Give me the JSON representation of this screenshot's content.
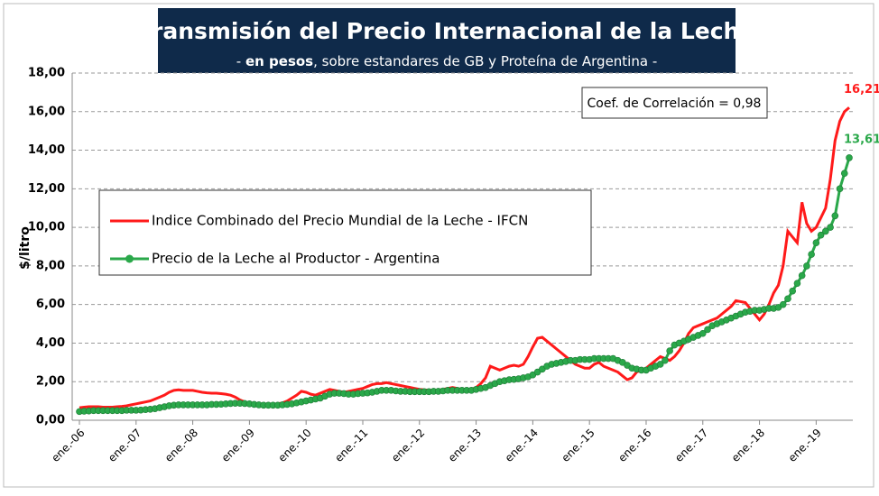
{
  "chart_data": {
    "type": "line",
    "title": "Transmisión del Precio Internacional de la Leche",
    "subtitle_parts": [
      "- ",
      "en pesos",
      ", sobre estandares de GB y Proteína de  Argentina -"
    ],
    "annotation": "Coef. de Correlación = 0,98",
    "y_label": "$/litro",
    "ylim": [
      0,
      18
    ],
    "yticks": [
      {
        "value": 0,
        "label": "0,00"
      },
      {
        "value": 2,
        "label": "2,00"
      },
      {
        "value": 4,
        "label": "4,00"
      },
      {
        "value": 6,
        "label": "6,00"
      },
      {
        "value": 8,
        "label": "8,00"
      },
      {
        "value": 10,
        "label": "10,00"
      },
      {
        "value": 12,
        "label": "12,00"
      },
      {
        "value": 14,
        "label": "14,00"
      },
      {
        "value": 16,
        "label": "16,00"
      },
      {
        "value": 18,
        "label": "18,00"
      }
    ],
    "grid": true,
    "legend": "left",
    "categories": [
      "ene.-06",
      null,
      null,
      null,
      null,
      null,
      null,
      null,
      null,
      null,
      null,
      null,
      "ene.-07",
      null,
      null,
      null,
      null,
      null,
      null,
      null,
      null,
      null,
      null,
      null,
      "ene.-08",
      null,
      null,
      null,
      null,
      null,
      null,
      null,
      null,
      null,
      null,
      null,
      "ene.-09",
      null,
      null,
      null,
      null,
      null,
      null,
      null,
      null,
      null,
      null,
      null,
      "ene.-10",
      null,
      null,
      null,
      null,
      null,
      null,
      null,
      null,
      null,
      null,
      null,
      "ene.-11",
      null,
      null,
      null,
      null,
      null,
      null,
      null,
      null,
      null,
      null,
      null,
      "ene.-12",
      null,
      null,
      null,
      null,
      null,
      null,
      null,
      null,
      null,
      null,
      null,
      "ene.-13",
      null,
      null,
      null,
      null,
      null,
      null,
      null,
      null,
      null,
      null,
      null,
      "ene.-14",
      null,
      null,
      null,
      null,
      null,
      null,
      null,
      null,
      null,
      null,
      null,
      "ene.-15",
      null,
      null,
      null,
      null,
      null,
      null,
      null,
      null,
      null,
      null,
      null,
      "ene.-16",
      null,
      null,
      null,
      null,
      null,
      null,
      null,
      null,
      null,
      null,
      null,
      "ene.-17",
      null,
      null,
      null,
      null,
      null,
      null,
      null,
      null,
      null,
      null,
      null,
      "ene.-18",
      null,
      null,
      null,
      null,
      null,
      null,
      null,
      null,
      null,
      null,
      null,
      "ene.-19",
      null,
      null,
      null,
      null,
      null,
      null,
      null
    ],
    "series": [
      {
        "name": "Indice Combinado del Precio Mundial de la Leche - IFCN",
        "color": "#ff1a1a",
        "markers": false,
        "last_value_label": "16,21",
        "values": [
          0.65,
          0.68,
          0.7,
          0.7,
          0.7,
          0.68,
          0.68,
          0.68,
          0.7,
          0.72,
          0.75,
          0.8,
          0.85,
          0.9,
          0.95,
          1.0,
          1.1,
          1.2,
          1.3,
          1.45,
          1.55,
          1.58,
          1.55,
          1.55,
          1.55,
          1.5,
          1.45,
          1.42,
          1.4,
          1.4,
          1.38,
          1.35,
          1.3,
          1.2,
          1.05,
          0.95,
          0.85,
          0.8,
          0.78,
          0.78,
          0.8,
          0.82,
          0.85,
          0.9,
          1.0,
          1.15,
          1.3,
          1.5,
          1.45,
          1.35,
          1.3,
          1.4,
          1.5,
          1.6,
          1.55,
          1.5,
          1.45,
          1.5,
          1.55,
          1.6,
          1.65,
          1.75,
          1.85,
          1.9,
          1.9,
          1.95,
          1.9,
          1.85,
          1.8,
          1.75,
          1.7,
          1.65,
          1.6,
          1.58,
          1.55,
          1.55,
          1.55,
          1.6,
          1.65,
          1.7,
          1.65,
          1.6,
          1.55,
          1.6,
          1.7,
          1.9,
          2.2,
          2.8,
          2.7,
          2.6,
          2.7,
          2.8,
          2.85,
          2.8,
          2.9,
          3.3,
          3.8,
          4.25,
          4.3,
          4.1,
          3.9,
          3.7,
          3.5,
          3.3,
          3.1,
          2.9,
          2.8,
          2.7,
          2.7,
          2.9,
          3.0,
          2.8,
          2.7,
          2.6,
          2.5,
          2.3,
          2.1,
          2.2,
          2.5,
          2.6,
          2.7,
          2.9,
          3.1,
          3.3,
          3.2,
          3.1,
          3.3,
          3.6,
          4.0,
          4.5,
          4.8,
          4.9,
          5.0,
          5.1,
          5.2,
          5.3,
          5.5,
          5.7,
          5.9,
          6.2,
          6.15,
          6.1,
          5.8,
          5.5,
          5.2,
          5.5,
          6.0,
          6.6,
          7.0,
          8.0,
          9.8,
          9.5,
          9.2,
          11.3,
          10.2,
          9.8,
          10.0,
          10.5,
          11.0,
          12.5,
          14.5,
          15.5,
          16.0,
          16.21
        ]
      },
      {
        "name": "Precio de la Leche al Productor - Argentina",
        "color": "#2aa84a",
        "markers": true,
        "last_value_label": "13,61",
        "values": [
          0.45,
          0.47,
          0.48,
          0.5,
          0.5,
          0.5,
          0.5,
          0.5,
          0.5,
          0.5,
          0.52,
          0.52,
          0.52,
          0.53,
          0.55,
          0.57,
          0.6,
          0.65,
          0.7,
          0.75,
          0.78,
          0.8,
          0.8,
          0.8,
          0.8,
          0.8,
          0.8,
          0.8,
          0.82,
          0.82,
          0.83,
          0.85,
          0.87,
          0.88,
          0.88,
          0.87,
          0.85,
          0.82,
          0.8,
          0.78,
          0.78,
          0.78,
          0.78,
          0.8,
          0.82,
          0.85,
          0.9,
          0.95,
          1.0,
          1.05,
          1.1,
          1.15,
          1.25,
          1.35,
          1.4,
          1.4,
          1.38,
          1.35,
          1.35,
          1.38,
          1.4,
          1.42,
          1.45,
          1.5,
          1.55,
          1.55,
          1.55,
          1.52,
          1.5,
          1.5,
          1.48,
          1.48,
          1.48,
          1.48,
          1.48,
          1.5,
          1.5,
          1.52,
          1.55,
          1.55,
          1.55,
          1.55,
          1.55,
          1.55,
          1.6,
          1.65,
          1.7,
          1.8,
          1.9,
          2.0,
          2.05,
          2.1,
          2.12,
          2.15,
          2.2,
          2.25,
          2.35,
          2.5,
          2.65,
          2.8,
          2.9,
          2.95,
          3.0,
          3.05,
          3.1,
          3.1,
          3.15,
          3.15,
          3.15,
          3.2,
          3.2,
          3.2,
          3.2,
          3.2,
          3.1,
          3.0,
          2.85,
          2.7,
          2.65,
          2.6,
          2.6,
          2.7,
          2.8,
          2.9,
          3.1,
          3.6,
          3.9,
          4.0,
          4.1,
          4.2,
          4.3,
          4.4,
          4.5,
          4.7,
          4.9,
          5.0,
          5.1,
          5.2,
          5.3,
          5.4,
          5.5,
          5.6,
          5.65,
          5.7,
          5.7,
          5.75,
          5.8,
          5.8,
          5.85,
          6.0,
          6.3,
          6.7,
          7.1,
          7.5,
          8.0,
          8.6,
          9.2,
          9.6,
          9.8,
          10.0,
          10.6,
          12.0,
          12.8,
          13.61
        ]
      }
    ]
  }
}
